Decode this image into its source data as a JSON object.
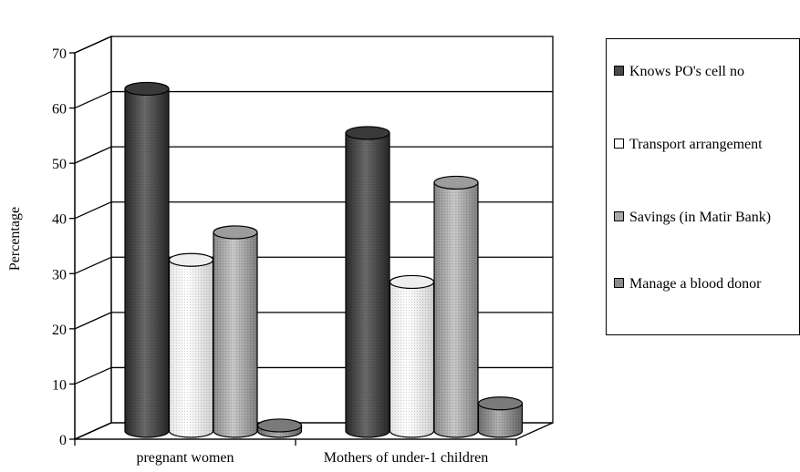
{
  "chart_data": {
    "type": "bar",
    "three_d": true,
    "title": "",
    "xlabel": "",
    "ylabel": "Percentage",
    "ylim": [
      0,
      70
    ],
    "yticks": [
      "0",
      "10",
      "20",
      "30",
      "40",
      "50",
      "60",
      "70"
    ],
    "grid": true,
    "legend_position": "right",
    "categories": [
      "pregnant women",
      "Mothers of under-1 children"
    ],
    "series": [
      {
        "name": "Knows PO's cell no",
        "values": [
          62,
          54
        ],
        "color": "#4a4a4a"
      },
      {
        "name": "Transport arrangement",
        "values": [
          31,
          27
        ],
        "color": "#f5f5f5"
      },
      {
        "name": "Savings (in Matir Bank)",
        "values": [
          36,
          45
        ],
        "color": "#a8a8a8"
      },
      {
        "name": "Manage a blood donor",
        "values": [
          1,
          5
        ],
        "color": "#8c8c8c"
      }
    ]
  }
}
